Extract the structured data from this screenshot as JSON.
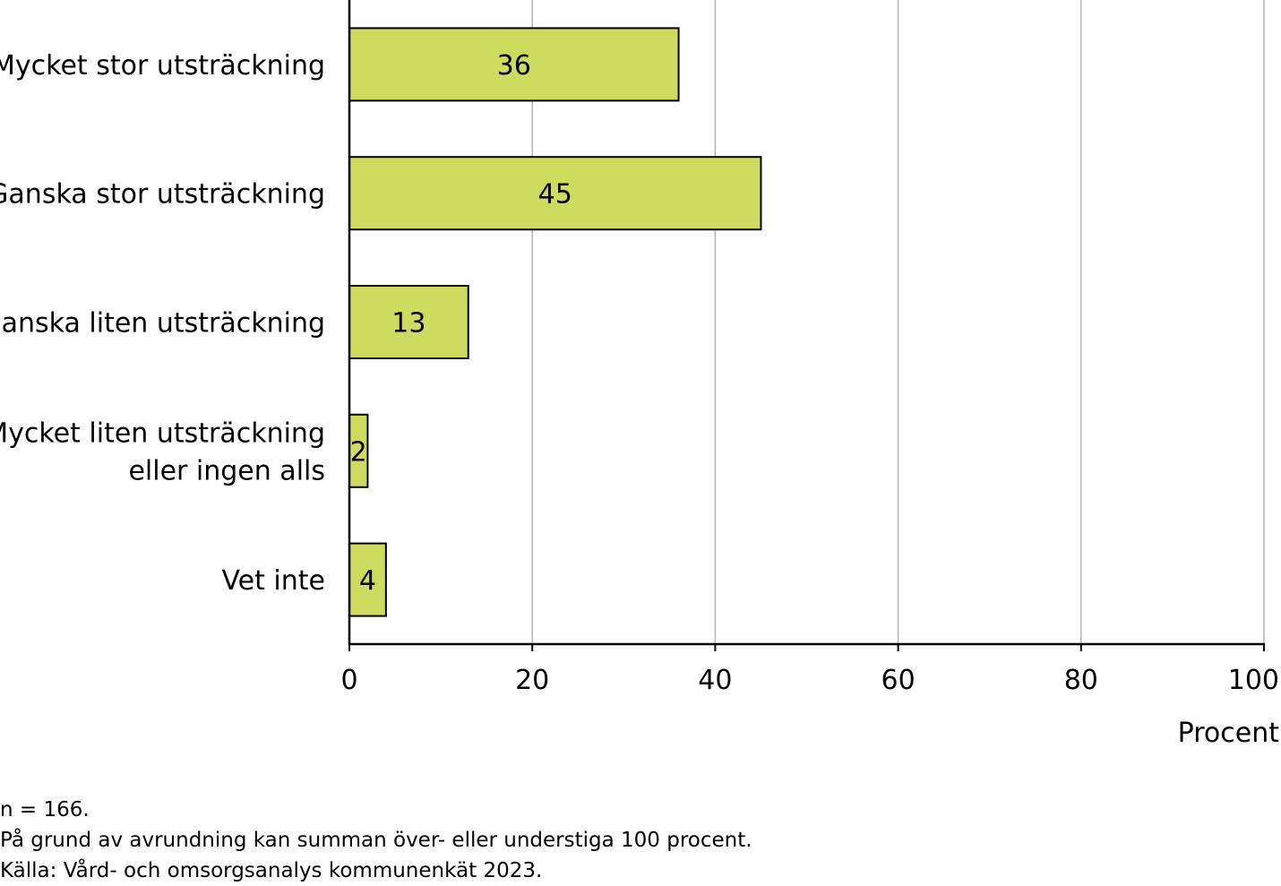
{
  "chart_data": {
    "type": "bar",
    "orientation": "horizontal",
    "categories": [
      [
        "Mycket stor utsträckning"
      ],
      [
        "Ganska stor utsträckning"
      ],
      [
        "Ganska liten utsträckning"
      ],
      [
        "Mycket liten utsträckning",
        "eller ingen alls"
      ],
      [
        "Vet inte"
      ]
    ],
    "values": [
      36,
      45,
      13,
      2,
      4
    ],
    "value_labels": [
      "36",
      "45",
      "13",
      "2",
      "4"
    ],
    "xlabel": "Procent",
    "xlim": [
      0,
      100
    ],
    "xticks": [
      0,
      20,
      40,
      60,
      80,
      100
    ],
    "grid": true,
    "bar_color": "#cddc5f",
    "bar_stroke": "#000000",
    "grid_color": "#b3b3b3"
  },
  "footnotes": {
    "n": "n = 166.",
    "rounding": "På grund av avrundning kan summan över- eller understiga 100 procent.",
    "source": "Källa: Vård- och omsorgsanalys kommunenkät 2023."
  }
}
